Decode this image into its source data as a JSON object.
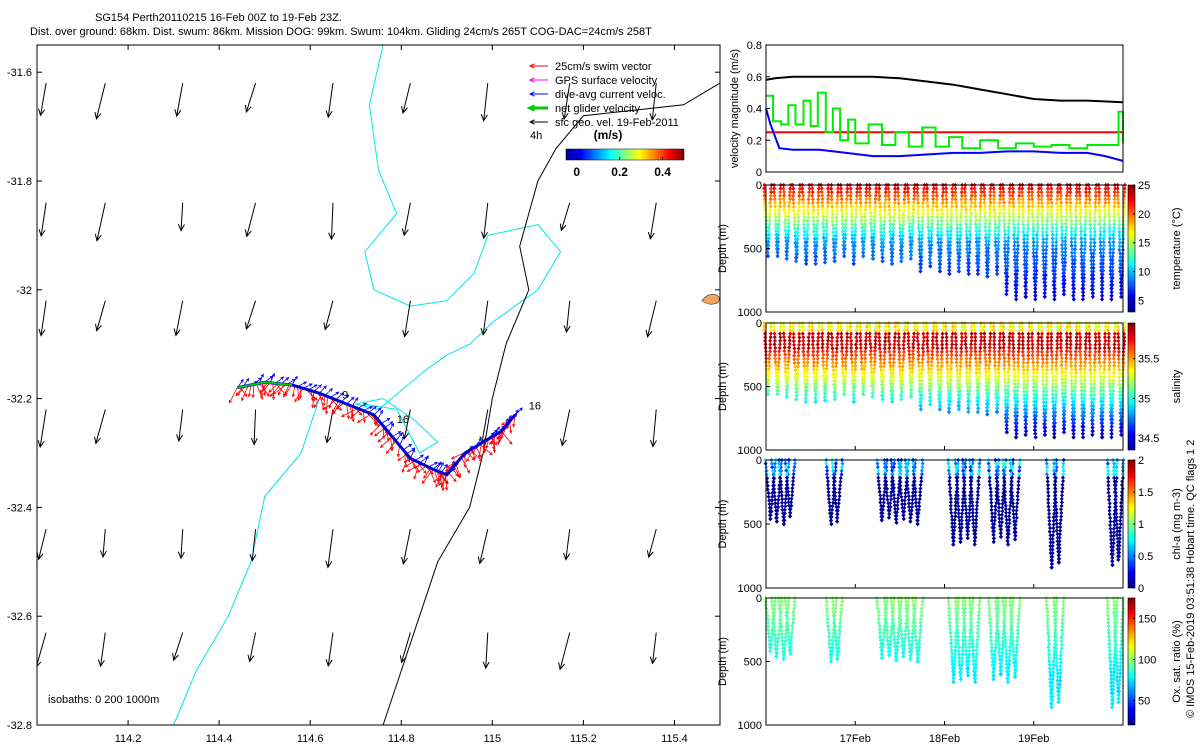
{
  "header": {
    "title": "SG154 Perth20110215 16-Feb 00Z to 19-Feb 23Z.",
    "stats": "Dist. over ground: 68km. Dist. swum: 86km. Mission DOG: 99km. Swum: 104km. Gliding 24cm/s 265T COG-DAC=24cm/s 258T"
  },
  "credit": "© IMOS 15-Feb-2019 03:51:38 Hobart time. QC flags 1  2",
  "chart_data": [
    {
      "id": "map",
      "type": "scatter",
      "title": "Glider track with current vectors",
      "xlim": [
        114.0,
        115.5
      ],
      "ylim": [
        -32.8,
        -31.55
      ],
      "xticks": [
        "114.2",
        "114.4",
        "114.6",
        "114.8",
        "115",
        "115.2",
        "115.4"
      ],
      "xtick_values": [
        114.2,
        114.4,
        114.6,
        114.8,
        115.0,
        115.2,
        115.4
      ],
      "yticks": [
        "-31.6",
        "-31.8",
        "-32",
        "-32.2",
        "-32.4",
        "-32.6",
        "-32.8"
      ],
      "ytick_values": [
        -31.6,
        -31.8,
        -32.0,
        -32.2,
        -32.4,
        -32.6,
        -32.8
      ],
      "legend": [
        {
          "label": "25cm/s swim vector",
          "color": "#ff0000"
        },
        {
          "label": "GPS surface velocity",
          "color": "#ff00ff"
        },
        {
          "label": "dive-avg current veloc.",
          "color": "#0000ff"
        },
        {
          "label": "net glider velocity",
          "color": "#00cc00"
        },
        {
          "label": "sfc geo. vel. 19-Feb-2011",
          "color": "#000000"
        }
      ],
      "time_step_label": "4h",
      "colorbar": {
        "label": "(m/s)",
        "ticks": [
          "0",
          "0.2",
          "0.4"
        ],
        "tick_values": [
          0,
          0.2,
          0.4
        ],
        "range": [
          -0.05,
          0.5
        ]
      },
      "isobath_label": "isobaths: 0   200  1000m",
      "track": [
        [
          114.44,
          -32.18
        ],
        [
          114.5,
          -32.17
        ],
        [
          114.56,
          -32.175
        ],
        [
          114.62,
          -32.19
        ],
        [
          114.68,
          -32.21
        ],
        [
          114.74,
          -32.23
        ],
        [
          114.78,
          -32.27
        ],
        [
          114.82,
          -32.31
        ],
        [
          114.87,
          -32.33
        ],
        [
          114.9,
          -32.34
        ],
        [
          114.94,
          -32.3
        ],
        [
          114.98,
          -32.28
        ],
        [
          115.02,
          -32.26
        ],
        [
          115.05,
          -32.23
        ]
      ],
      "day_labels": [
        {
          "text": "9",
          "lon": 114.67,
          "lat": -32.2
        },
        {
          "text": "16",
          "lon": 114.79,
          "lat": -32.245
        },
        {
          "text": "16",
          "lon": 115.08,
          "lat": -32.22
        }
      ],
      "geo_vectors": {
        "lons": [
          114.02,
          114.15,
          114.32,
          114.48,
          114.65,
          114.82,
          114.99,
          115.17,
          115.36
        ],
        "lats": [
          -31.62,
          -31.84,
          -32.02,
          -32.22,
          -32.44,
          -32.63
        ],
        "units": "m/s",
        "u": -0.05,
        "v": -0.3
      },
      "coastline": [
        [
          115.5,
          -31.62
        ],
        [
          115.42,
          -31.66
        ],
        [
          115.2,
          -31.68
        ],
        [
          115.14,
          -31.74
        ],
        [
          115.1,
          -31.8
        ],
        [
          115.06,
          -31.92
        ],
        [
          115.08,
          -32.0
        ],
        [
          115.03,
          -32.1
        ],
        [
          115.0,
          -32.2
        ],
        [
          114.98,
          -32.3
        ],
        [
          114.95,
          -32.4
        ],
        [
          114.88,
          -32.5
        ],
        [
          114.84,
          -32.6
        ],
        [
          114.8,
          -32.7
        ],
        [
          114.76,
          -32.8
        ]
      ],
      "isobath_200": [
        [
          114.76,
          -31.55
        ],
        [
          114.73,
          -31.66
        ],
        [
          114.75,
          -31.78
        ],
        [
          114.79,
          -31.86
        ],
        [
          114.72,
          -31.93
        ],
        [
          114.74,
          -32.0
        ],
        [
          114.82,
          -32.03
        ],
        [
          114.9,
          -32.02
        ],
        [
          114.96,
          -31.97
        ],
        [
          114.99,
          -31.9
        ],
        [
          115.1,
          -31.88
        ],
        [
          115.15,
          -31.93
        ],
        [
          115.1,
          -32.0
        ],
        [
          115.0,
          -32.06
        ],
        [
          114.95,
          -32.1
        ],
        [
          114.9,
          -32.12
        ],
        [
          114.85,
          -32.15
        ],
        [
          114.75,
          -32.22
        ],
        [
          114.7,
          -32.21
        ],
        [
          114.76,
          -32.2
        ],
        [
          114.83,
          -32.24
        ],
        [
          114.88,
          -32.28
        ],
        [
          114.84,
          -32.3
        ],
        [
          114.79,
          -32.22
        ],
        [
          114.72,
          -32.21
        ]
      ],
      "isobath_1000": [
        [
          114.62,
          -32.2
        ],
        [
          114.58,
          -32.3
        ],
        [
          114.5,
          -32.38
        ],
        [
          114.47,
          -32.5
        ],
        [
          114.42,
          -32.6
        ],
        [
          114.35,
          -32.7
        ],
        [
          114.3,
          -32.8
        ]
      ]
    },
    {
      "id": "velocity",
      "type": "line",
      "ylabel": "velocity magnitude (m/s)",
      "ylim": [
        0,
        0.8
      ],
      "yticks": [
        "0",
        "0.2",
        "0.4",
        "0.6",
        "0.8"
      ],
      "ytick_values": [
        0,
        0.2,
        0.4,
        0.6,
        0.8
      ],
      "xlim": [
        16.0,
        20.0
      ],
      "series": [
        {
          "name": "swim speed",
          "color": "#000000",
          "t": [
            16.0,
            16.1,
            16.3,
            16.8,
            17.2,
            17.5,
            17.8,
            18.1,
            18.4,
            18.7,
            19.0,
            19.3,
            19.6,
            20.0
          ],
          "values": [
            0.58,
            0.59,
            0.6,
            0.6,
            0.6,
            0.59,
            0.57,
            0.55,
            0.52,
            0.49,
            0.46,
            0.45,
            0.45,
            0.44
          ]
        },
        {
          "name": "target",
          "color": "#ff0000",
          "t": [
            16.0,
            20.0
          ],
          "values": [
            0.25,
            0.25
          ]
        },
        {
          "name": "dive-avg current",
          "color": "#0000ff",
          "t": [
            16.0,
            16.05,
            16.15,
            16.3,
            16.6,
            16.9,
            17.2,
            17.5,
            17.8,
            18.1,
            18.4,
            18.7,
            19.0,
            19.3,
            19.6,
            19.8,
            20.0
          ],
          "values": [
            0.4,
            0.3,
            0.15,
            0.14,
            0.14,
            0.12,
            0.1,
            0.1,
            0.11,
            0.12,
            0.12,
            0.13,
            0.13,
            0.12,
            0.12,
            0.1,
            0.07
          ]
        },
        {
          "name": "net glider velocity",
          "color": "#00ee00",
          "t": [
            16.0,
            16.08,
            16.17,
            16.25,
            16.33,
            16.42,
            16.5,
            16.58,
            16.67,
            16.75,
            16.83,
            16.92,
            17.0,
            17.15,
            17.3,
            17.45,
            17.6,
            17.75,
            17.9,
            18.05,
            18.2,
            18.4,
            18.6,
            18.8,
            19.0,
            19.2,
            19.4,
            19.6,
            19.8,
            19.95,
            20.0
          ],
          "values": [
            0.48,
            0.32,
            0.3,
            0.42,
            0.3,
            0.45,
            0.29,
            0.5,
            0.25,
            0.4,
            0.2,
            0.33,
            0.18,
            0.3,
            0.17,
            0.25,
            0.16,
            0.28,
            0.16,
            0.22,
            0.15,
            0.2,
            0.15,
            0.18,
            0.16,
            0.17,
            0.15,
            0.17,
            0.17,
            0.38,
            0.18
          ]
        }
      ]
    },
    {
      "id": "temperature",
      "type": "scatter",
      "ylabel": "Depth (m)",
      "ylim": [
        0,
        1000
      ],
      "yticks": [
        "0",
        "500",
        "1000"
      ],
      "ytick_values": [
        0,
        500,
        1000
      ],
      "colorbar": {
        "label": "temperature (°C)",
        "ticks": [
          "5",
          "10",
          "15",
          "20",
          "25"
        ],
        "tick_values": [
          5,
          10,
          15,
          20,
          25
        ],
        "range": [
          3,
          25
        ]
      },
      "dive_start": 16.02,
      "dive_end": 19.98,
      "dive_count": 38,
      "max_depths": [
        560,
        560,
        580,
        600,
        620,
        620,
        610,
        600,
        560,
        620,
        560,
        580,
        600,
        620,
        600,
        580,
        680,
        640,
        680,
        700,
        680,
        700,
        700,
        720,
        700,
        860,
        900,
        880,
        900,
        880,
        900,
        860,
        900,
        900,
        880,
        900,
        900,
        880
      ]
    },
    {
      "id": "salinity",
      "type": "scatter",
      "ylabel": "Depth (m)",
      "ylim": [
        0,
        1000
      ],
      "yticks": [
        "0",
        "500",
        "1000"
      ],
      "ytick_values": [
        0,
        500,
        1000
      ],
      "colorbar": {
        "label": "salinity",
        "ticks": [
          "34.5",
          "35",
          "35.5"
        ],
        "tick_values": [
          34.5,
          35.0,
          35.5
        ],
        "range": [
          34.35,
          35.95
        ]
      },
      "dive_start": 16.02,
      "dive_end": 19.98,
      "dive_count": 38,
      "max_depths": [
        560,
        560,
        580,
        600,
        620,
        620,
        610,
        600,
        560,
        620,
        560,
        580,
        600,
        620,
        600,
        580,
        680,
        640,
        680,
        700,
        680,
        700,
        700,
        720,
        700,
        860,
        900,
        880,
        900,
        880,
        900,
        860,
        900,
        900,
        880,
        900,
        900,
        880
      ]
    },
    {
      "id": "chla",
      "type": "scatter",
      "ylabel": "Depth (m)",
      "ylim": [
        0,
        1000
      ],
      "yticks": [
        "0",
        "500",
        "1000"
      ],
      "ytick_values": [
        0,
        500,
        1000
      ],
      "colorbar": {
        "label": "chl-a (mg m-3)",
        "ticks": [
          "0",
          "0.5",
          "1",
          "1.5",
          "2"
        ],
        "tick_values": [
          0,
          0.5,
          1.0,
          1.5,
          2.0
        ],
        "range": [
          0,
          2
        ]
      },
      "dives": [
        {
          "t": 16.05,
          "max": 460
        },
        {
          "t": 16.12,
          "max": 480
        },
        {
          "t": 16.2,
          "max": 500
        },
        {
          "t": 16.27,
          "max": 440
        },
        {
          "t": 16.73,
          "max": 500
        },
        {
          "t": 16.8,
          "max": 480
        },
        {
          "t": 17.3,
          "max": 470
        },
        {
          "t": 17.38,
          "max": 450
        },
        {
          "t": 17.46,
          "max": 490
        },
        {
          "t": 17.54,
          "max": 460
        },
        {
          "t": 17.62,
          "max": 480
        },
        {
          "t": 17.7,
          "max": 500
        },
        {
          "t": 18.1,
          "max": 660
        },
        {
          "t": 18.18,
          "max": 640
        },
        {
          "t": 18.26,
          "max": 610
        },
        {
          "t": 18.34,
          "max": 660
        },
        {
          "t": 18.55,
          "max": 640
        },
        {
          "t": 18.63,
          "max": 600
        },
        {
          "t": 18.71,
          "max": 660
        },
        {
          "t": 18.79,
          "max": 620
        },
        {
          "t": 19.2,
          "max": 840
        },
        {
          "t": 19.28,
          "max": 800
        },
        {
          "t": 19.88,
          "max": 820
        },
        {
          "t": 19.95,
          "max": 780
        }
      ]
    },
    {
      "id": "oxygen",
      "type": "scatter",
      "ylabel": "Depth (m)",
      "xlim": [
        16.0,
        20.0
      ],
      "ylim": [
        0,
        1000
      ],
      "yticks": [
        "0",
        "500",
        "1000"
      ],
      "ytick_values": [
        0,
        500,
        1000
      ],
      "xticks": [
        "17Feb",
        "18Feb",
        "19Feb"
      ],
      "xtick_values": [
        17.0,
        18.0,
        19.0
      ],
      "colorbar": {
        "label": "Ox. sat. ratio (%)",
        "ticks": [
          "50",
          "100",
          "150"
        ],
        "tick_values": [
          50,
          100,
          150
        ],
        "range": [
          20,
          175
        ]
      },
      "dives": [
        {
          "t": 16.05,
          "max": 420
        },
        {
          "t": 16.12,
          "max": 460
        },
        {
          "t": 16.2,
          "max": 480
        },
        {
          "t": 16.27,
          "max": 440
        },
        {
          "t": 16.73,
          "max": 500
        },
        {
          "t": 16.8,
          "max": 480
        },
        {
          "t": 17.3,
          "max": 470
        },
        {
          "t": 17.38,
          "max": 450
        },
        {
          "t": 17.46,
          "max": 490
        },
        {
          "t": 17.54,
          "max": 460
        },
        {
          "t": 17.62,
          "max": 480
        },
        {
          "t": 17.7,
          "max": 500
        },
        {
          "t": 18.1,
          "max": 660
        },
        {
          "t": 18.18,
          "max": 640
        },
        {
          "t": 18.26,
          "max": 610
        },
        {
          "t": 18.34,
          "max": 660
        },
        {
          "t": 18.55,
          "max": 640
        },
        {
          "t": 18.63,
          "max": 600
        },
        {
          "t": 18.71,
          "max": 660
        },
        {
          "t": 18.79,
          "max": 620
        },
        {
          "t": 19.2,
          "max": 860
        },
        {
          "t": 19.28,
          "max": 820
        },
        {
          "t": 19.88,
          "max": 860
        },
        {
          "t": 19.95,
          "max": 820
        }
      ]
    }
  ]
}
